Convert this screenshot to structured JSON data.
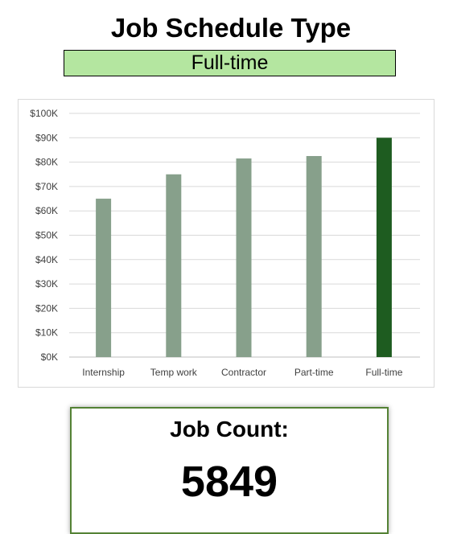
{
  "dashboard": {
    "title": "Job Schedule Type",
    "selected_filter": "Full-time",
    "job_count_label": "Job Count:",
    "job_count_value": "5849"
  },
  "colors": {
    "bar_default": "#87a08b",
    "bar_highlight": "#1e5c20",
    "filter_background": "#b4e6a0",
    "card_border": "#548235"
  },
  "chart_data": {
    "type": "bar",
    "title": "",
    "xlabel": "",
    "ylabel": "",
    "categories": [
      "Internship",
      "Temp work",
      "Contractor",
      "Part-time",
      "Full-time"
    ],
    "values": [
      65000,
      75000,
      81500,
      82500,
      90000
    ],
    "highlight": "Full-time",
    "ylim": [
      0,
      100000
    ],
    "yticks": [
      0,
      10000,
      20000,
      30000,
      40000,
      50000,
      60000,
      70000,
      80000,
      90000,
      100000
    ],
    "ytick_labels": [
      "$0K",
      "$10K",
      "$20K",
      "$30K",
      "$40K",
      "$50K",
      "$60K",
      "$70K",
      "$80K",
      "$90K",
      "$100K"
    ],
    "grid": true,
    "legend": "none"
  }
}
